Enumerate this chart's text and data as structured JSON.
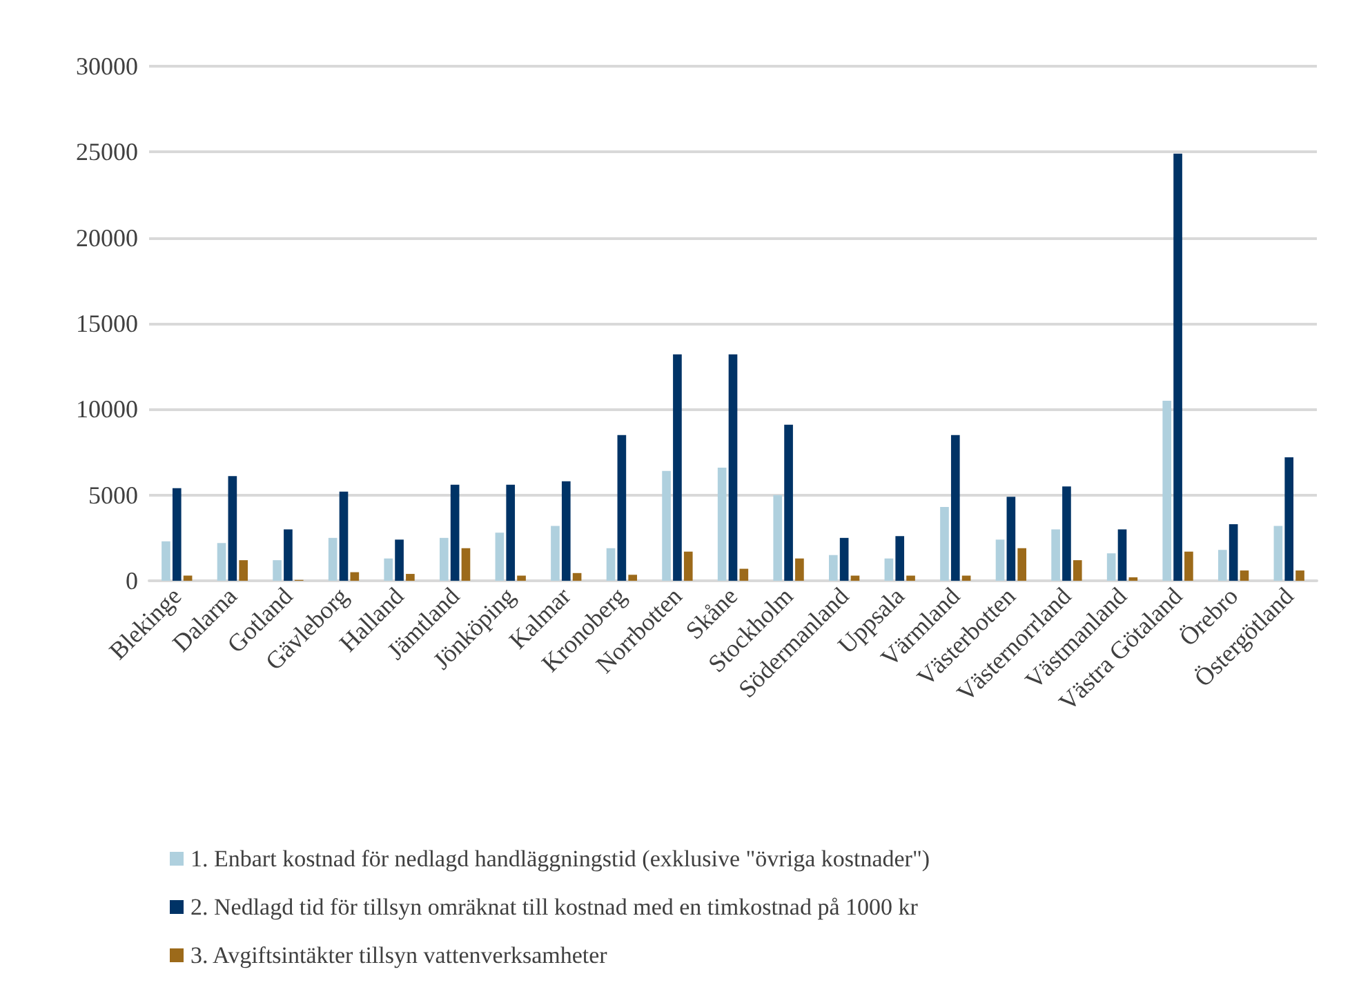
{
  "chart_data": {
    "type": "bar",
    "categories": [
      "Blekinge",
      "Dalarna",
      "Gotland",
      "Gävleborg",
      "Halland",
      "Jämtland",
      "Jönköping",
      "Kalmar",
      "Kronoberg",
      "Norrbotten",
      "Skåne",
      "Stockholm",
      "Södermanland",
      "Uppsala",
      "Värmland",
      "Västerbotten",
      "Västernorrland",
      "Västmanland",
      "Västra Götaland",
      "Örebro",
      "Östergötland"
    ],
    "series": [
      {
        "name": "1. Enbart kostnad för nedlagd handläggningstid (exklusive \"övriga kostnader\")",
        "color": "#afd0de",
        "values": [
          2300,
          2200,
          1200,
          2500,
          1300,
          2500,
          2800,
          3200,
          1900,
          6400,
          6600,
          5000,
          1500,
          1300,
          4300,
          2400,
          3000,
          1600,
          10500,
          1800,
          3200
        ]
      },
      {
        "name": "2. Nedlagd tid för tillsyn omräknat till kostnad med en timkostnad på 1000 kr",
        "color": "#003366",
        "values": [
          5400,
          6100,
          3000,
          5200,
          2400,
          5600,
          5600,
          5800,
          8500,
          13200,
          13200,
          9100,
          2500,
          2600,
          8500,
          4900,
          5500,
          3000,
          24900,
          3300,
          7200
        ]
      },
      {
        "name": "3. Avgiftsintäkter tillsyn vattenverksamheter",
        "color": "#9c6a1a",
        "values": [
          300,
          1200,
          50,
          500,
          400,
          1900,
          300,
          450,
          350,
          1700,
          700,
          1300,
          300,
          300,
          300,
          1900,
          1200,
          200,
          1700,
          600,
          600
        ]
      }
    ],
    "ylim": [
      0,
      30000
    ],
    "yticks": [
      0,
      5000,
      10000,
      15000,
      20000,
      25000,
      30000
    ],
    "grid": "y",
    "legend": "bottom"
  }
}
